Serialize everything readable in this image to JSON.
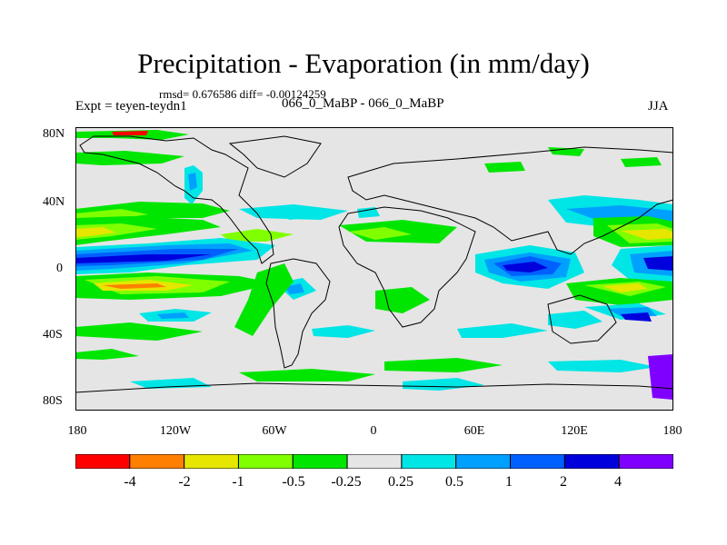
{
  "title": "Precipitation - Evaporation (in mm/day)",
  "stats": "rmsd= 0.676586 diff= -0.00124259",
  "expt": "Expt = teyen-teydn1",
  "diff_name": "066_0_MaBP - 066_0_MaBP",
  "season": "JJA",
  "lat_labels": [
    "80N",
    "40N",
    "0",
    "40S",
    "80S"
  ],
  "lon_labels": [
    "180",
    "120W",
    "60W",
    "0",
    "60E",
    "120E",
    "180"
  ],
  "colorbar": {
    "colors": [
      "#ff0000",
      "#ff8000",
      "#e6e600",
      "#80ff00",
      "#00e600",
      "#e5e5e5",
      "#00e5e5",
      "#00a0ff",
      "#0060ff",
      "#0000dd",
      "#8000ff"
    ],
    "labels": [
      "-4",
      "-2",
      "-1",
      "-0.5",
      "-0.25",
      "0.25",
      "0.5",
      "1",
      "2",
      "4"
    ]
  }
}
